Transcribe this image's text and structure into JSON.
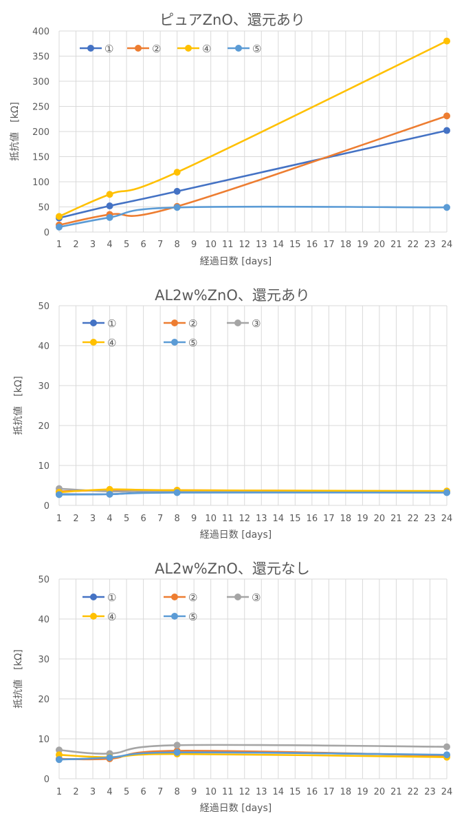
{
  "chart_data": [
    {
      "type": "line",
      "title": "ピュアZnO、還元あり",
      "xlabel": "経過日数 [days]",
      "ylabel": "抵抗値　[kΩ]",
      "x_ticks": [
        1,
        2,
        3,
        4,
        5,
        6,
        7,
        8,
        9,
        10,
        11,
        12,
        13,
        14,
        15,
        16,
        17,
        18,
        19,
        20,
        21,
        22,
        23,
        24
      ],
      "xlim": [
        1,
        24
      ],
      "ylim": [
        0,
        400
      ],
      "y_ticks": [
        0,
        50,
        100,
        150,
        200,
        250,
        300,
        350,
        400
      ],
      "grid": true,
      "legend_position": "top-left",
      "legend_columns": 4,
      "series": [
        {
          "name": "①",
          "color": "#4472c4",
          "x": [
            1,
            4,
            8,
            24
          ],
          "values": [
            28,
            52,
            81,
            202
          ]
        },
        {
          "name": "②",
          "color": "#ed7d31",
          "x": [
            1,
            4,
            8,
            24
          ],
          "values": [
            14,
            35,
            51,
            231
          ]
        },
        {
          "name": "④",
          "color": "#ffc000",
          "x": [
            1,
            4,
            8,
            24
          ],
          "values": [
            31,
            75,
            119,
            380
          ]
        },
        {
          "name": "⑤",
          "color": "#5b9bd5",
          "x": [
            1,
            4,
            8,
            24
          ],
          "values": [
            10,
            29,
            49,
            49
          ]
        }
      ]
    },
    {
      "type": "line",
      "title": "AL2w%ZnO、還元あり",
      "xlabel": "経過日数 [days]",
      "ylabel": "抵抗値　[kΩ]",
      "x_ticks": [
        1,
        2,
        3,
        4,
        5,
        6,
        7,
        8,
        9,
        10,
        11,
        12,
        13,
        14,
        15,
        16,
        17,
        18,
        19,
        20,
        21,
        22,
        23,
        24
      ],
      "xlim": [
        1,
        24
      ],
      "ylim": [
        0,
        50
      ],
      "y_ticks": [
        0,
        10,
        20,
        30,
        40,
        50
      ],
      "grid": true,
      "legend_position": "top-left",
      "legend_columns": 3,
      "series": [
        {
          "name": "①",
          "color": "#4472c4",
          "x": [
            1,
            4,
            8,
            24
          ],
          "values": [
            2.8,
            2.8,
            3.3,
            3.3
          ]
        },
        {
          "name": "②",
          "color": "#ed7d31",
          "x": [
            1,
            4,
            8,
            24
          ],
          "values": [
            3.5,
            3.8,
            3.8,
            3.5
          ]
        },
        {
          "name": "③",
          "color": "#a5a5a5",
          "x": [
            1,
            4,
            8,
            24
          ],
          "values": [
            4.2,
            3.5,
            3.6,
            3.5
          ]
        },
        {
          "name": "④",
          "color": "#ffc000",
          "x": [
            1,
            4,
            8,
            24
          ],
          "values": [
            3.3,
            4.0,
            3.8,
            3.6
          ]
        },
        {
          "name": "⑤",
          "color": "#5b9bd5",
          "x": [
            1,
            4,
            8,
            24
          ],
          "values": [
            2.7,
            2.8,
            3.2,
            3.2
          ]
        }
      ]
    },
    {
      "type": "line",
      "title": "AL2w%ZnO、還元なし",
      "xlabel": "経過日数 [days]",
      "ylabel": "抵抗値　[kΩ]",
      "x_ticks": [
        1,
        2,
        3,
        4,
        5,
        6,
        7,
        8,
        9,
        10,
        11,
        12,
        13,
        14,
        15,
        16,
        17,
        18,
        19,
        20,
        21,
        22,
        23,
        24
      ],
      "xlim": [
        1,
        24
      ],
      "ylim": [
        0,
        50
      ],
      "y_ticks": [
        0,
        10,
        20,
        30,
        40,
        50
      ],
      "grid": true,
      "legend_position": "top-left",
      "legend_columns": 3,
      "series": [
        {
          "name": "①",
          "color": "#4472c4",
          "x": [
            1,
            4,
            8,
            24
          ],
          "values": [
            4.9,
            5.2,
            6.7,
            5.9
          ]
        },
        {
          "name": "②",
          "color": "#ed7d31",
          "x": [
            1,
            4,
            8,
            24
          ],
          "values": [
            5.0,
            5.0,
            7.0,
            5.8
          ]
        },
        {
          "name": "③",
          "color": "#a5a5a5",
          "x": [
            1,
            4,
            8,
            24
          ],
          "values": [
            7.2,
            6.3,
            8.4,
            8.0
          ]
        },
        {
          "name": "④",
          "color": "#ffc000",
          "x": [
            1,
            4,
            8,
            24
          ],
          "values": [
            6.0,
            5.4,
            6.2,
            5.4
          ]
        },
        {
          "name": "⑤",
          "color": "#5b9bd5",
          "x": [
            1,
            4,
            8,
            24
          ],
          "values": [
            4.8,
            5.3,
            6.6,
            6.0
          ]
        }
      ]
    }
  ]
}
